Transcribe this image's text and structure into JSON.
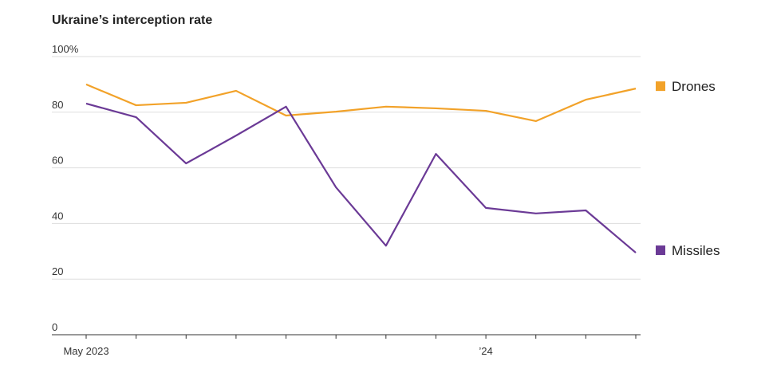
{
  "chart_data": {
    "type": "line",
    "title": "Ukraine’s interception rate",
    "categories": [
      "May 2023",
      null,
      null,
      null,
      null,
      null,
      null,
      null,
      "’24",
      null,
      null,
      null
    ],
    "series": [
      {
        "name": "Drones",
        "color": "#f2a229",
        "values": [
          90,
          82.5,
          83.4,
          87.7,
          78.8,
          80.2,
          82,
          81.4,
          80.5,
          76.8,
          84.5,
          88.5
        ]
      },
      {
        "name": "Missiles",
        "color": "#6b3a96",
        "values": [
          83.1,
          78.2,
          61.6,
          71.6,
          82,
          53,
          32,
          65,
          45.6,
          43.6,
          44.7,
          29.5
        ]
      }
    ],
    "ylim": [
      0,
      100
    ],
    "yticks": [
      0,
      20,
      40,
      60,
      80,
      {
        "value": 100,
        "label": "100%"
      }
    ],
    "grid": true
  }
}
